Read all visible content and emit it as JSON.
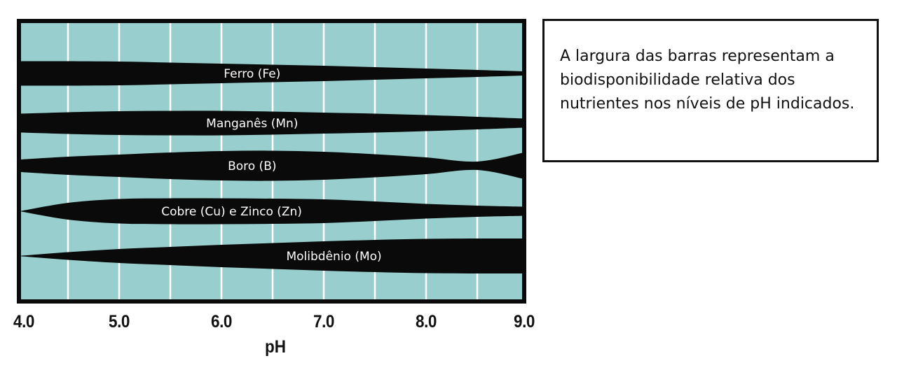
{
  "colors": {
    "plot_background": "#98cfce",
    "bar_fill": "#0a0a0a",
    "frame": "#0a0a0a",
    "gridline": "#ffffff",
    "bar_label": "#ffffff"
  },
  "axis": {
    "x_title": "pH",
    "ticks": [
      "4.0",
      "5.0",
      "6.0",
      "7.0",
      "8.0",
      "9.0"
    ],
    "tick_values": [
      4.0,
      5.0,
      6.0,
      7.0,
      8.0,
      9.0
    ],
    "gridlines_at": [
      4.5,
      5.0,
      5.5,
      6.0,
      6.5,
      7.0,
      7.5,
      8.0,
      8.5
    ]
  },
  "note": {
    "text": "A largura das barras representam a biodisponibilidade relativa dos nutrientes nos níveis de pH indicados."
  },
  "chart_data": {
    "type": "area",
    "subtype": "nutrient-availability band chart (bar width = relative availability)",
    "title": "",
    "xlabel": "pH",
    "ylabel": "",
    "xlim": [
      4.0,
      9.0
    ],
    "grid": true,
    "x_tick_labels": [
      "4.0",
      "5.0",
      "6.0",
      "7.0",
      "8.0",
      "9.0"
    ],
    "annotation": "A largura das barras representam a biodisponibilidade relativa dos nutrientes nos níveis de pH indicados.",
    "x": [
      4.0,
      4.5,
      5.0,
      5.5,
      6.0,
      6.5,
      7.0,
      7.5,
      8.0,
      8.5,
      9.0
    ],
    "series": [
      {
        "name": "Ferro (Fe)",
        "label_ph": 6.3,
        "values": [
          70,
          70,
          68,
          62,
          56,
          50,
          44,
          36,
          28,
          20,
          12
        ]
      },
      {
        "name": "Manganês (Mn)",
        "label_ph": 6.3,
        "values": [
          54,
          62,
          68,
          70,
          70,
          66,
          60,
          54,
          46,
          36,
          26
        ]
      },
      {
        "name": "Boro (B)",
        "label_ph": 6.3,
        "values": [
          36,
          52,
          64,
          76,
          84,
          86,
          80,
          66,
          48,
          24,
          76
        ]
      },
      {
        "name": "Cobre (Cu) e Zinco (Zn)",
        "label_ph": 6.1,
        "values": [
          0,
          48,
          70,
          74,
          74,
          72,
          68,
          56,
          42,
          32,
          26
        ]
      },
      {
        "name": "Molibdênio (Mo)",
        "label_ph": 7.1,
        "values": [
          0,
          22,
          40,
          52,
          64,
          74,
          84,
          92,
          98,
          100,
          100
        ]
      }
    ]
  }
}
